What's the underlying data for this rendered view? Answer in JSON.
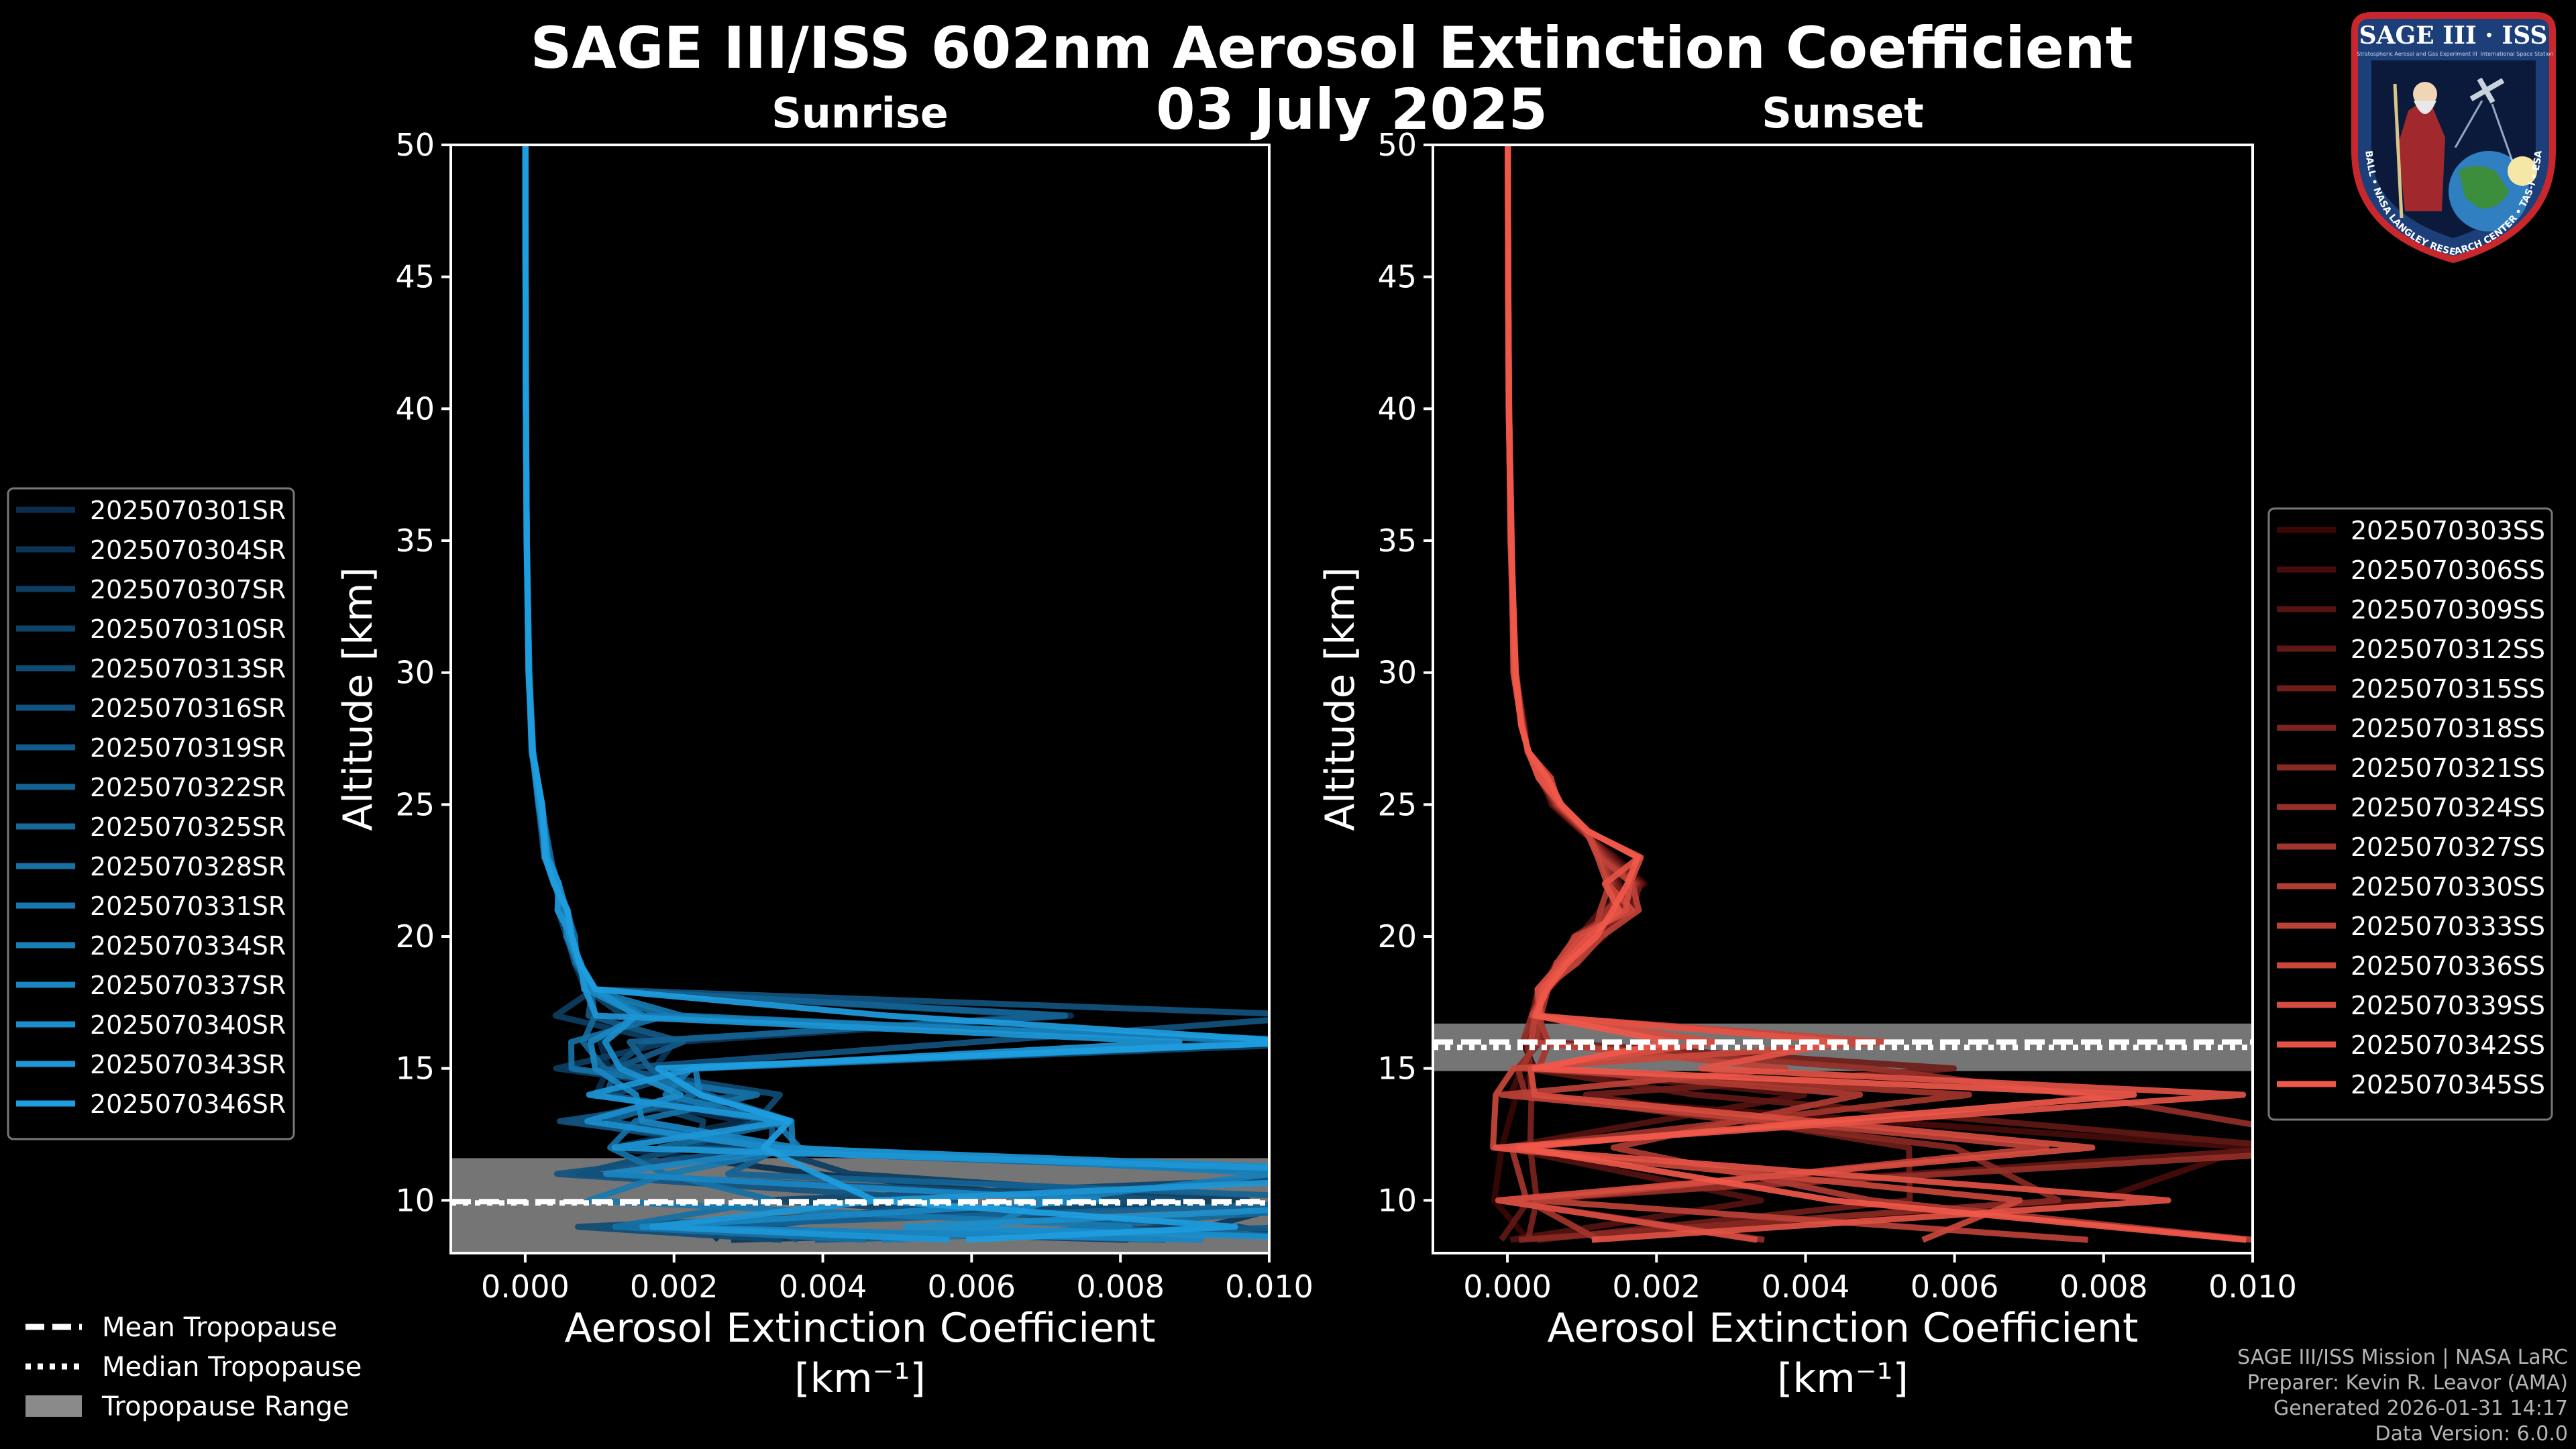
{
  "title": {
    "line1": "SAGE III/ISS 602nm Aerosol Extinction Coefficient",
    "line2": "03 July 2025"
  },
  "chart_data": [
    {
      "type": "line",
      "panel": "Sunrise",
      "title": "Sunrise",
      "xlabel": "Aerosol Extinction Coefficient",
      "xlabel_units": "[km⁻¹]",
      "ylabel": "Altitude [km]",
      "xlim": [
        -0.001,
        0.01
      ],
      "ylim": [
        8,
        50
      ],
      "xticks": [
        0.0,
        0.002,
        0.004,
        0.006,
        0.008,
        0.01
      ],
      "xtick_labels": [
        "0.000",
        "0.002",
        "0.004",
        "0.006",
        "0.008",
        "0.010"
      ],
      "yticks": [
        10,
        15,
        20,
        25,
        30,
        35,
        40,
        45,
        50
      ],
      "series_names": [
        "2025070301SR",
        "2025070304SR",
        "2025070307SR",
        "2025070310SR",
        "2025070313SR",
        "2025070316SR",
        "2025070319SR",
        "2025070322SR",
        "2025070325SR",
        "2025070328SR",
        "2025070331SR",
        "2025070334SR",
        "2025070337SR",
        "2025070340SR",
        "2025070343SR",
        "2025070346SR"
      ],
      "color_start": "#0a2e4d",
      "color_end": "#1e9de0",
      "typical_profile": {
        "altitude": [
          8.5,
          9,
          10,
          11,
          12,
          13,
          14,
          15,
          16,
          17,
          18,
          19,
          20,
          21,
          22,
          23,
          25,
          27,
          30,
          35,
          40,
          45,
          50
        ],
        "extinction": [
          0.0035,
          0.003,
          0.0025,
          0.002,
          0.0018,
          0.0016,
          0.0014,
          0.0012,
          0.0011,
          0.001,
          0.0009,
          0.0007,
          0.0006,
          0.0005,
          0.0004,
          0.0003,
          0.0002,
          0.0001,
          5e-05,
          2e-05,
          1e-05,
          5e-06,
          3e-06
        ]
      },
      "tropopause": {
        "mean": 9.95,
        "median": 9.9,
        "range": [
          8.0,
          11.6
        ]
      }
    },
    {
      "type": "line",
      "panel": "Sunset",
      "title": "Sunset",
      "xlabel": "Aerosol Extinction Coefficient",
      "xlabel_units": "[km⁻¹]",
      "ylabel": "Altitude [km]",
      "xlim": [
        -0.001,
        0.01
      ],
      "ylim": [
        8,
        50
      ],
      "xticks": [
        0.0,
        0.002,
        0.004,
        0.006,
        0.008,
        0.01
      ],
      "xtick_labels": [
        "0.000",
        "0.002",
        "0.004",
        "0.006",
        "0.008",
        "0.010"
      ],
      "yticks": [
        10,
        15,
        20,
        25,
        30,
        35,
        40,
        45,
        50
      ],
      "series_names": [
        "2025070303SS",
        "2025070306SS",
        "2025070309SS",
        "2025070312SS",
        "2025070315SS",
        "2025070318SS",
        "2025070321SS",
        "2025070324SS",
        "2025070327SS",
        "2025070330SS",
        "2025070333SS",
        "2025070336SS",
        "2025070339SS",
        "2025070342SS",
        "2025070345SS"
      ],
      "color_start": "#3a0606",
      "color_end": "#f0584a",
      "typical_profile": {
        "altitude": [
          8.5,
          10,
          12,
          14,
          15,
          16,
          17,
          18,
          19,
          20,
          21,
          22,
          23,
          24,
          25,
          26,
          27,
          28,
          30,
          35,
          40,
          45,
          50
        ],
        "extinction": [
          0.0002,
          0.0001,
          5e-05,
          0.0001,
          0.0002,
          0.0003,
          0.0004,
          0.0005,
          0.0008,
          0.0011,
          0.0015,
          0.0016,
          0.0015,
          0.001,
          0.0007,
          0.0005,
          0.0003,
          0.0002,
          0.0001,
          5e-05,
          2e-05,
          1e-05,
          5e-06
        ]
      },
      "tropopause": {
        "mean": 16.0,
        "median": 15.8,
        "range": [
          14.9,
          16.7
        ]
      }
    }
  ],
  "legend_tropopause": [
    {
      "style": "dashed",
      "label": "Mean Tropopause"
    },
    {
      "style": "dotted",
      "label": "Median Tropopause"
    },
    {
      "style": "patch",
      "label": "Tropopause Range"
    }
  ],
  "credits": [
    "SAGE III/ISS Mission | NASA LaRC",
    "Preparer: Kevin R. Leavor (AMA)",
    "Generated 2026-01-31 14:17",
    "Data Version: 6.0.0"
  ],
  "logo": {
    "name": "SAGE III · ISS",
    "ring_text": "BALL • NASA LANGLEY RESEARCH CENTER • TAS-I • ESA",
    "sub_left": "Stratospheric Aerosol and Gas Experiment III",
    "sub_right": "International Space Station"
  }
}
